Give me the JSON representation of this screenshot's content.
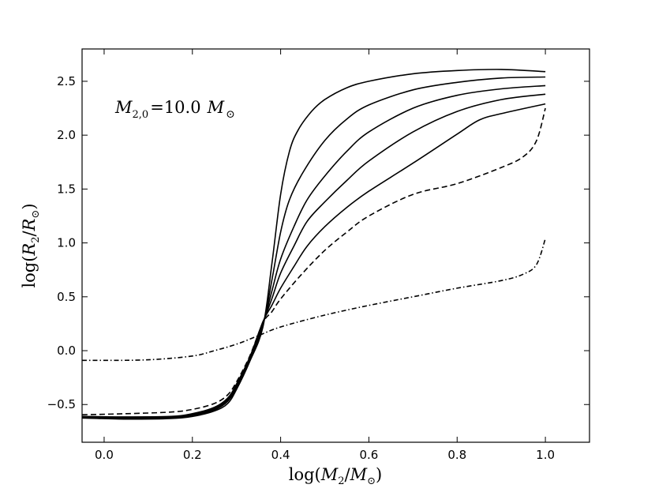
{
  "chart_data": {
    "type": "line",
    "title": "",
    "annotation": {
      "text": "M2,0 = 10.0 M⊙",
      "math": {
        "symbol": "M",
        "subscript": "2,0",
        "equals": "=",
        "value": "10.0",
        "unit_symbol": "M",
        "unit_subscript": "⊙"
      }
    },
    "xlabel": "log(M2/M⊙)",
    "ylabel": "log(R2/R⊙)",
    "xlabel_parts": {
      "prefix": "log(",
      "num": "M",
      "num_sub": "2",
      "slash": "/",
      "den": "M",
      "den_sub": "⊙",
      "suffix": ")"
    },
    "ylabel_parts": {
      "prefix": "log(",
      "num": "R",
      "num_sub": "2",
      "slash": "/",
      "den": "R",
      "den_sub": "⊙",
      "suffix": ")"
    },
    "xlim": [
      -0.05,
      1.1
    ],
    "ylim": [
      -0.85,
      2.8
    ],
    "xticks": [
      0.0,
      0.2,
      0.4,
      0.6,
      0.8,
      1.0
    ],
    "xtick_labels": [
      "0.0",
      "0.2",
      "0.4",
      "0.6",
      "0.8",
      "1.0"
    ],
    "yticks": [
      -0.5,
      0.0,
      0.5,
      1.0,
      1.5,
      2.0,
      2.5
    ],
    "ytick_labels": [
      "−0.5",
      "0.0",
      "0.5",
      "1.0",
      "1.5",
      "2.0",
      "2.5"
    ],
    "grid": false,
    "series": [
      {
        "name": "solid-1",
        "style": "solid",
        "x": [
          -0.05,
          0.05,
          0.15,
          0.2,
          0.25,
          0.28,
          0.3,
          0.33,
          0.36,
          0.38,
          0.4,
          0.42,
          0.44,
          0.47,
          0.5,
          0.55,
          0.6,
          0.7,
          0.8,
          0.9,
          1.0
        ],
        "y": [
          -0.625,
          -0.635,
          -0.63,
          -0.61,
          -0.56,
          -0.49,
          -0.36,
          -0.1,
          0.22,
          0.8,
          1.45,
          1.85,
          2.05,
          2.22,
          2.33,
          2.44,
          2.5,
          2.57,
          2.6,
          2.61,
          2.59
        ]
      },
      {
        "name": "solid-2",
        "style": "solid",
        "x": [
          -0.05,
          0.05,
          0.15,
          0.2,
          0.25,
          0.28,
          0.3,
          0.33,
          0.36,
          0.38,
          0.4,
          0.42,
          0.45,
          0.5,
          0.55,
          0.6,
          0.7,
          0.8,
          0.9,
          1.0
        ],
        "y": [
          -0.62,
          -0.63,
          -0.625,
          -0.6,
          -0.55,
          -0.47,
          -0.34,
          -0.09,
          0.24,
          0.65,
          1.1,
          1.4,
          1.65,
          1.95,
          2.15,
          2.28,
          2.42,
          2.49,
          2.53,
          2.54
        ]
      },
      {
        "name": "solid-3",
        "style": "solid",
        "x": [
          -0.05,
          0.05,
          0.15,
          0.2,
          0.25,
          0.28,
          0.3,
          0.33,
          0.36,
          0.38,
          0.4,
          0.43,
          0.46,
          0.5,
          0.55,
          0.6,
          0.7,
          0.8,
          0.9,
          1.0
        ],
        "y": [
          -0.62,
          -0.625,
          -0.62,
          -0.595,
          -0.545,
          -0.46,
          -0.33,
          -0.08,
          0.25,
          0.55,
          0.85,
          1.15,
          1.4,
          1.62,
          1.85,
          2.03,
          2.25,
          2.37,
          2.43,
          2.46
        ]
      },
      {
        "name": "solid-4",
        "style": "solid",
        "x": [
          -0.05,
          0.05,
          0.15,
          0.2,
          0.25,
          0.28,
          0.3,
          0.33,
          0.36,
          0.38,
          0.4,
          0.43,
          0.46,
          0.5,
          0.55,
          0.6,
          0.7,
          0.8,
          0.9,
          1.0
        ],
        "y": [
          -0.615,
          -0.62,
          -0.615,
          -0.59,
          -0.535,
          -0.45,
          -0.32,
          -0.07,
          0.26,
          0.48,
          0.72,
          0.97,
          1.2,
          1.38,
          1.58,
          1.76,
          2.03,
          2.22,
          2.33,
          2.38
        ]
      },
      {
        "name": "solid-5",
        "style": "solid",
        "x": [
          -0.05,
          0.05,
          0.15,
          0.2,
          0.25,
          0.28,
          0.3,
          0.33,
          0.36,
          0.38,
          0.4,
          0.43,
          0.46,
          0.5,
          0.55,
          0.6,
          0.7,
          0.8,
          0.85,
          0.9,
          1.0
        ],
        "y": [
          -0.61,
          -0.615,
          -0.61,
          -0.585,
          -0.525,
          -0.44,
          -0.31,
          -0.06,
          0.27,
          0.42,
          0.58,
          0.78,
          0.97,
          1.15,
          1.33,
          1.48,
          1.74,
          2.01,
          2.14,
          2.2,
          2.29
        ]
      },
      {
        "name": "dashed",
        "style": "dashed",
        "x": [
          -0.05,
          0.05,
          0.15,
          0.2,
          0.25,
          0.28,
          0.3,
          0.33,
          0.36,
          0.38,
          0.4,
          0.45,
          0.5,
          0.55,
          0.6,
          0.7,
          0.8,
          0.9,
          0.95,
          0.98,
          1.0
        ],
        "y": [
          -0.595,
          -0.585,
          -0.57,
          -0.545,
          -0.49,
          -0.41,
          -0.29,
          -0.05,
          0.26,
          0.36,
          0.48,
          0.72,
          0.93,
          1.1,
          1.25,
          1.45,
          1.55,
          1.7,
          1.8,
          1.95,
          2.25
        ]
      },
      {
        "name": "dashdot",
        "style": "dashdot",
        "x": [
          -0.05,
          0.0,
          0.1,
          0.2,
          0.25,
          0.3,
          0.35,
          0.4,
          0.5,
          0.6,
          0.7,
          0.8,
          0.9,
          0.95,
          0.98,
          1.0
        ],
        "y": [
          -0.09,
          -0.09,
          -0.085,
          -0.05,
          0.0,
          0.06,
          0.14,
          0.22,
          0.33,
          0.42,
          0.5,
          0.58,
          0.65,
          0.71,
          0.8,
          1.04
        ]
      }
    ]
  }
}
